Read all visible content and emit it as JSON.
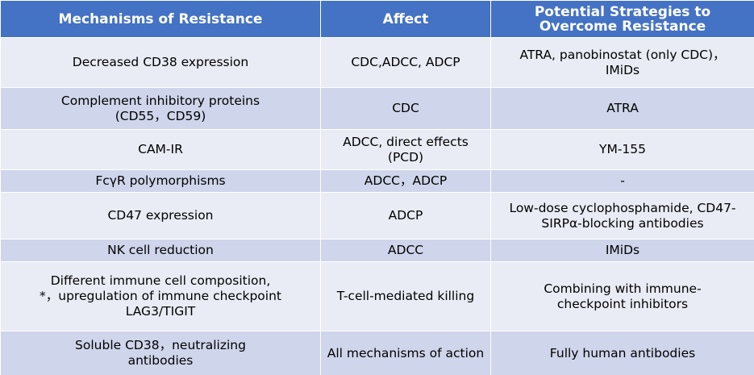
{
  "table": {
    "headers": [
      "Mechanisms of Resistance",
      "Affect",
      "Potential Strategies to Overcome Resistance"
    ],
    "rows": [
      [
        "Decreased CD38 expression",
        "CDC,ADCC, ADCP",
        "ATRA, panobinostat (only CDC)，IMiDs"
      ],
      [
        "Complement inhibitory proteins (CD55，CD59)",
        "CDC",
        "ATRA"
      ],
      [
        "CAM-IR",
        "ADCC, direct effects (PCD)",
        "YM-155"
      ],
      [
        "FcγR polymorphisms",
        "ADCC，ADCP",
        "-"
      ],
      [
        "CD47 expression",
        "ADCP",
        "Low-dose cyclophosphamide, CD47-SIRPα-blocking antibodies"
      ],
      [
        "NK cell reduction",
        "ADCC",
        "IMiDs"
      ],
      [
        "Different immune cell composition, *，upregulation of immune checkpoint LAG3/TIGIT",
        "T-cell-mediated killing",
        "Combining with immune-checkpoint inhibitors"
      ],
      [
        "Soluble CD38，neutralizing antibodies",
        "All mechanisms of action",
        "Fully human antibodies"
      ]
    ]
  },
  "colors": {
    "header_bg": "#4472c4",
    "row_light": "#e9ecf5",
    "row_dark": "#cfd5ea"
  }
}
